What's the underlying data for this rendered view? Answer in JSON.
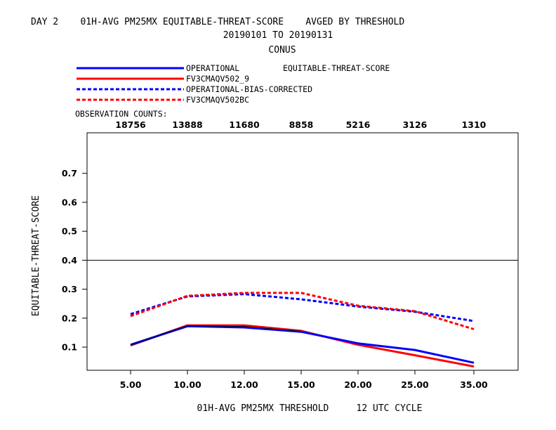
{
  "header": {
    "title_line1": "DAY 2    01H-AVG PM25MX EQUITABLE-THREAT-SCORE    AVGED BY THRESHOLD",
    "title_line2": "20190101 TO 20190131",
    "title_line3": "CONUS"
  },
  "legend": {
    "statistic": "EQUITABLE-THREAT-SCORE",
    "obs_label": "OBSERVATION COUNTS:"
  },
  "chart_data": {
    "type": "line",
    "categories": [
      "5.00",
      "10.00",
      "12.00",
      "15.00",
      "20.00",
      "25.00",
      "35.00"
    ],
    "observation_counts": [
      "18756",
      "13888",
      "11680",
      "8858",
      "5216",
      "3126",
      "1310"
    ],
    "xlabel": "01H-AVG PM25MX THRESHOLD     12 UTC CYCLE",
    "ylabel": "EQUITABLE-THREAT-SCORE",
    "ylim": [
      0.02,
      0.84
    ],
    "yticks": [
      "0.1",
      "0.2",
      "0.3",
      "0.4",
      "0.5",
      "0.6",
      "0.7"
    ],
    "reference_line": 0.4,
    "grid": false,
    "legend_position": "top-left",
    "series": [
      {
        "name": "OPERATIONAL",
        "color": "#0000ff",
        "dash": "solid",
        "values": [
          0.108,
          0.172,
          0.168,
          0.153,
          0.113,
          0.09,
          0.046
        ]
      },
      {
        "name": "FV3CMAQV502_9",
        "color": "#ff0000",
        "dash": "solid",
        "values": [
          0.106,
          0.175,
          0.175,
          0.156,
          0.108,
          0.072,
          0.033
        ]
      },
      {
        "name": "OPERATIONAL-BIAS-CORRECTED",
        "color": "#0000ff",
        "dash": "dashed",
        "values": [
          0.214,
          0.275,
          0.283,
          0.265,
          0.24,
          0.222,
          0.19
        ]
      },
      {
        "name": "FV3CMAQV502BC",
        "color": "#ff0000",
        "dash": "dashed",
        "values": [
          0.207,
          0.277,
          0.287,
          0.287,
          0.243,
          0.224,
          0.162
        ]
      }
    ]
  }
}
